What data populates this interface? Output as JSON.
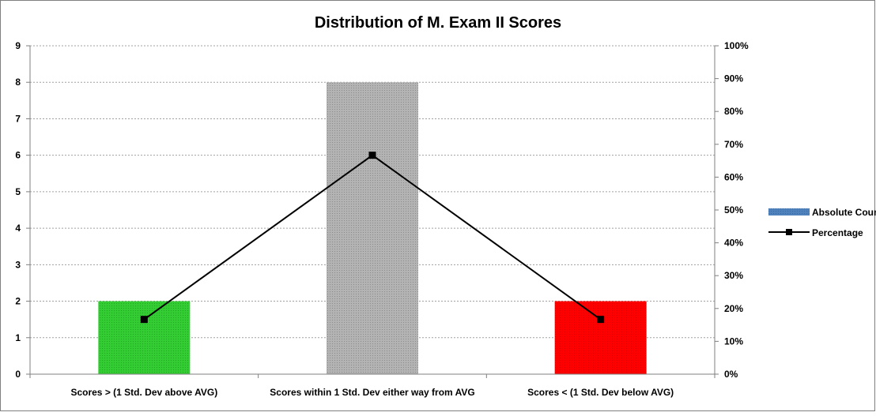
{
  "chart_data": {
    "type": "bar",
    "title": "Distribution of M. Exam II Scores",
    "categories": [
      "Scores > (1 Std. Dev above AVG)",
      "Scores within 1 Std. Dev either way from AVG",
      "Scores < (1 Std. Dev below AVG)"
    ],
    "series": [
      {
        "name": "Absolute Count",
        "type": "bar",
        "axis": "left",
        "values": [
          2,
          8,
          2
        ],
        "colors": [
          "#33cc33",
          "#a6a6a6",
          "#ff0000"
        ],
        "legend_color": "#4f81bd"
      },
      {
        "name": "Percentage",
        "type": "line",
        "axis": "right",
        "values": [
          16.67,
          66.67,
          16.67
        ],
        "color": "#000000"
      }
    ],
    "ylim_left": [
      0,
      9
    ],
    "yticks_left": [
      "0",
      "1",
      "2",
      "3",
      "4",
      "5",
      "6",
      "7",
      "8",
      "9"
    ],
    "ylim_right": [
      0,
      100
    ],
    "yticks_right": [
      "0%",
      "10%",
      "20%",
      "30%",
      "40%",
      "50%",
      "60%",
      "70%",
      "80%",
      "90%",
      "100%"
    ],
    "grid": true,
    "legend_position": "right"
  }
}
